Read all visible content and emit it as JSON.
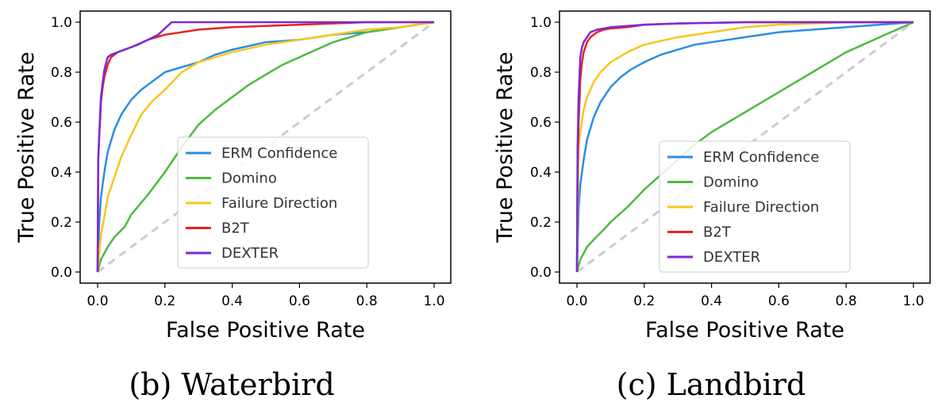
{
  "chart_data": [
    {
      "type": "line",
      "title": "",
      "caption": "(b) Waterbird",
      "xlabel": "False Positive Rate",
      "ylabel": "True Positive Rate",
      "xlim": [
        0,
        1
      ],
      "ylim": [
        0,
        1
      ],
      "xticks": [
        "0.0",
        "0.2",
        "0.4",
        "0.6",
        "0.8",
        "1.0"
      ],
      "yticks": [
        "0.0",
        "0.2",
        "0.4",
        "0.6",
        "0.8",
        "1.0"
      ],
      "grid": false,
      "legend_position": "lower-right",
      "diagonal": {
        "x": [
          0,
          1
        ],
        "y": [
          0,
          1
        ],
        "color": "#cccccc",
        "style": "dashed"
      },
      "series": [
        {
          "name": "ERM Confidence",
          "color": "#2b8fe0",
          "x": [
            0,
            0.005,
            0.01,
            0.02,
            0.03,
            0.05,
            0.07,
            0.1,
            0.13,
            0.16,
            0.2,
            0.25,
            0.3,
            0.35,
            0.4,
            0.5,
            0.6,
            0.7,
            0.8,
            0.9,
            1.0
          ],
          "y": [
            0,
            0.2,
            0.3,
            0.4,
            0.48,
            0.57,
            0.63,
            0.69,
            0.73,
            0.76,
            0.8,
            0.82,
            0.84,
            0.87,
            0.89,
            0.92,
            0.93,
            0.95,
            0.96,
            0.98,
            1.0
          ]
        },
        {
          "name": "Domino",
          "color": "#4cbb3f",
          "x": [
            0,
            0.01,
            0.03,
            0.05,
            0.08,
            0.1,
            0.15,
            0.2,
            0.25,
            0.3,
            0.35,
            0.4,
            0.45,
            0.5,
            0.55,
            0.6,
            0.65,
            0.7,
            0.75,
            0.8,
            0.9,
            1.0
          ],
          "y": [
            0,
            0.05,
            0.1,
            0.14,
            0.18,
            0.23,
            0.31,
            0.4,
            0.5,
            0.59,
            0.65,
            0.7,
            0.75,
            0.79,
            0.83,
            0.86,
            0.89,
            0.92,
            0.94,
            0.96,
            0.98,
            1.0
          ]
        },
        {
          "name": "Failure Direction",
          "color": "#f7c71c",
          "x": [
            0,
            0.01,
            0.02,
            0.03,
            0.05,
            0.07,
            0.1,
            0.13,
            0.16,
            0.2,
            0.25,
            0.3,
            0.35,
            0.4,
            0.5,
            0.6,
            0.7,
            0.8,
            0.9,
            1.0
          ],
          "y": [
            0,
            0.15,
            0.22,
            0.3,
            0.38,
            0.46,
            0.55,
            0.63,
            0.68,
            0.73,
            0.8,
            0.84,
            0.86,
            0.88,
            0.91,
            0.93,
            0.95,
            0.97,
            0.98,
            1.0
          ]
        },
        {
          "name": "B2T",
          "color": "#e8231f",
          "x": [
            0,
            0.002,
            0.005,
            0.008,
            0.01,
            0.015,
            0.02,
            0.03,
            0.04,
            0.06,
            0.1,
            0.15,
            0.2,
            0.3,
            0.4,
            0.6,
            0.8,
            1.0
          ],
          "y": [
            0,
            0.45,
            0.55,
            0.62,
            0.68,
            0.74,
            0.78,
            0.83,
            0.86,
            0.88,
            0.9,
            0.93,
            0.95,
            0.97,
            0.98,
            0.99,
            1.0,
            1.0
          ]
        },
        {
          "name": "DEXTER",
          "color": "#7b2bd6",
          "x": [
            0,
            0.002,
            0.005,
            0.008,
            0.01,
            0.015,
            0.02,
            0.03,
            0.04,
            0.06,
            0.08,
            0.1,
            0.12,
            0.15,
            0.18,
            0.22,
            0.3,
            0.5,
            1.0
          ],
          "y": [
            0,
            0.45,
            0.55,
            0.65,
            0.7,
            0.76,
            0.81,
            0.86,
            0.87,
            0.88,
            0.89,
            0.9,
            0.91,
            0.93,
            0.95,
            1.0,
            1.0,
            1.0,
            1.0
          ]
        }
      ]
    },
    {
      "type": "line",
      "title": "",
      "caption": "(c) Landbird",
      "xlabel": "False Positive Rate",
      "ylabel": "True Positive Rate",
      "xlim": [
        0,
        1
      ],
      "ylim": [
        0,
        1
      ],
      "xticks": [
        "0.0",
        "0.2",
        "0.4",
        "0.6",
        "0.8",
        "1.0"
      ],
      "yticks": [
        "0.0",
        "0.2",
        "0.4",
        "0.6",
        "0.8",
        "1.0"
      ],
      "grid": false,
      "legend_position": "lower-right",
      "diagonal": {
        "x": [
          0,
          1
        ],
        "y": [
          0,
          1
        ],
        "color": "#cccccc",
        "style": "dashed"
      },
      "series": [
        {
          "name": "ERM Confidence",
          "color": "#2b8fe0",
          "x": [
            0,
            0.005,
            0.01,
            0.02,
            0.03,
            0.05,
            0.07,
            0.1,
            0.13,
            0.16,
            0.2,
            0.25,
            0.3,
            0.35,
            0.4,
            0.5,
            0.6,
            0.7,
            0.8,
            0.9,
            1.0
          ],
          "y": [
            0,
            0.25,
            0.35,
            0.45,
            0.53,
            0.62,
            0.68,
            0.74,
            0.78,
            0.81,
            0.84,
            0.87,
            0.89,
            0.91,
            0.92,
            0.94,
            0.96,
            0.97,
            0.98,
            0.99,
            1.0
          ]
        },
        {
          "name": "Domino",
          "color": "#4cbb3f",
          "x": [
            0,
            0.01,
            0.03,
            0.05,
            0.08,
            0.1,
            0.15,
            0.2,
            0.25,
            0.3,
            0.35,
            0.4,
            0.45,
            0.5,
            0.55,
            0.6,
            0.65,
            0.7,
            0.75,
            0.8,
            0.9,
            1.0
          ],
          "y": [
            0,
            0.05,
            0.1,
            0.13,
            0.17,
            0.2,
            0.26,
            0.33,
            0.39,
            0.45,
            0.51,
            0.56,
            0.6,
            0.64,
            0.68,
            0.72,
            0.76,
            0.8,
            0.84,
            0.88,
            0.94,
            1.0
          ]
        },
        {
          "name": "Failure Direction",
          "color": "#f7c71c",
          "x": [
            0,
            0.005,
            0.01,
            0.02,
            0.03,
            0.05,
            0.07,
            0.1,
            0.15,
            0.2,
            0.3,
            0.4,
            0.5,
            0.6,
            0.8,
            1.0
          ],
          "y": [
            0,
            0.5,
            0.56,
            0.65,
            0.7,
            0.76,
            0.8,
            0.84,
            0.88,
            0.91,
            0.94,
            0.96,
            0.98,
            0.99,
            1.0,
            1.0
          ]
        },
        {
          "name": "B2T",
          "color": "#e8231f",
          "x": [
            0,
            0.002,
            0.005,
            0.008,
            0.01,
            0.015,
            0.02,
            0.03,
            0.04,
            0.05,
            0.06,
            0.08,
            0.1,
            0.15,
            0.2,
            0.3,
            0.5,
            1.0
          ],
          "y": [
            0,
            0.4,
            0.6,
            0.7,
            0.77,
            0.84,
            0.88,
            0.92,
            0.94,
            0.95,
            0.96,
            0.97,
            0.975,
            0.98,
            0.99,
            0.995,
            1.0,
            1.0
          ]
        },
        {
          "name": "DEXTER",
          "color": "#7b2bd6",
          "x": [
            0,
            0.002,
            0.005,
            0.008,
            0.01,
            0.015,
            0.02,
            0.03,
            0.04,
            0.05,
            0.06,
            0.08,
            0.1,
            0.15,
            0.2,
            0.3,
            0.5,
            1.0
          ],
          "y": [
            0,
            0.5,
            0.7,
            0.8,
            0.86,
            0.9,
            0.92,
            0.94,
            0.96,
            0.965,
            0.97,
            0.975,
            0.98,
            0.985,
            0.99,
            0.995,
            1.0,
            1.0
          ]
        }
      ]
    }
  ]
}
